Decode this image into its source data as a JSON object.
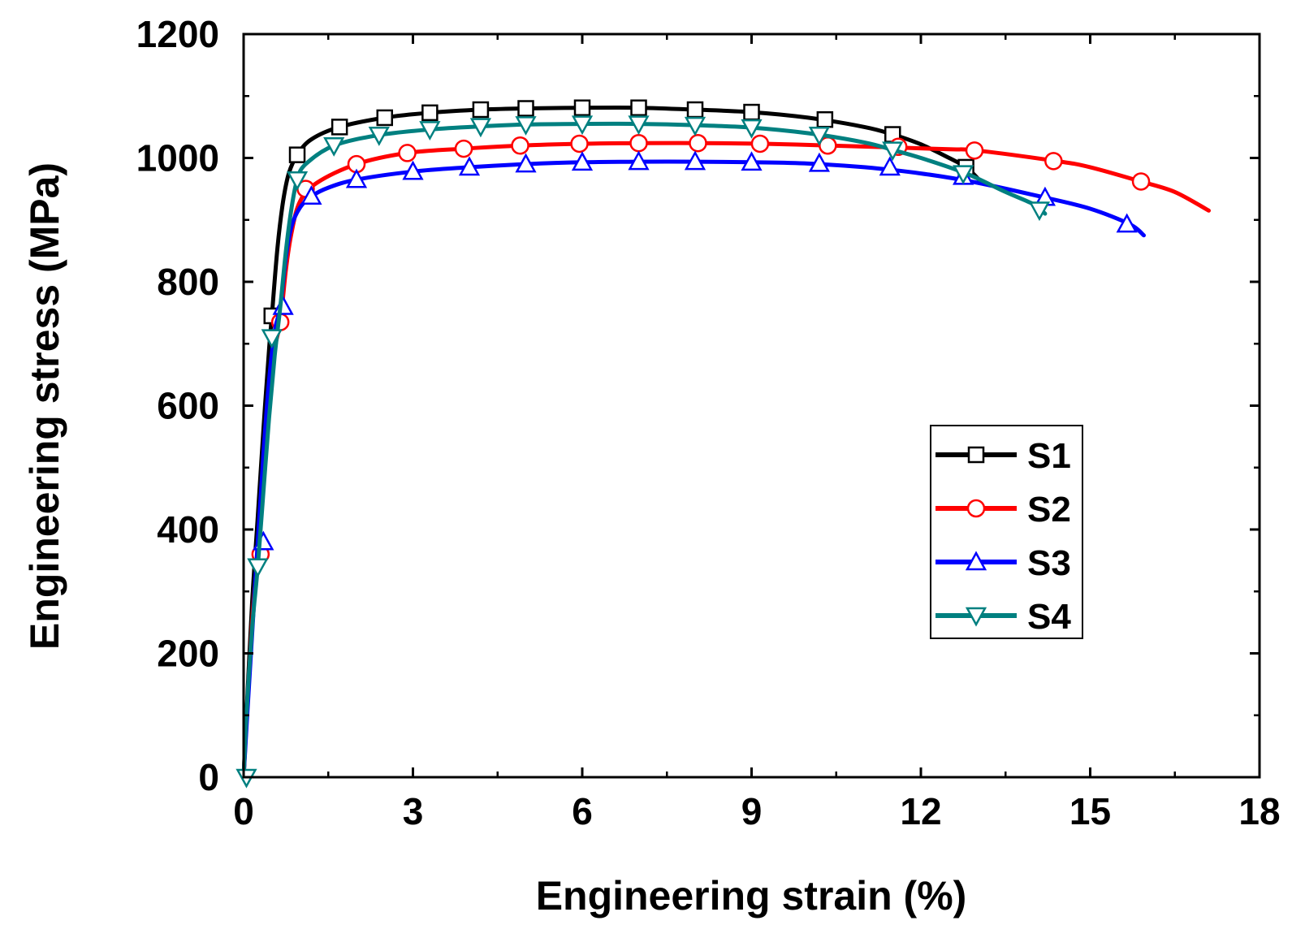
{
  "chart_data": {
    "type": "line",
    "xlabel": "Engineering strain (%)",
    "ylabel": "Engineering stress (MPa)",
    "xlim": [
      0,
      18
    ],
    "ylim": [
      0,
      1200
    ],
    "xticks": [
      0,
      3,
      6,
      9,
      12,
      15,
      18
    ],
    "xtick_labels": [
      "0",
      "3",
      "6",
      "9",
      "12",
      "15",
      "18"
    ],
    "yticks": [
      0,
      200,
      400,
      600,
      800,
      1000,
      1200
    ],
    "ytick_labels": [
      "0",
      "200",
      "400",
      "600",
      "800",
      "1000",
      "1200"
    ],
    "grid": false,
    "legend_position": "center-right",
    "series": [
      {
        "name": "S1",
        "color": "#000000",
        "marker": "square",
        "x": [
          0,
          0.05,
          0.15,
          0.25,
          0.35,
          0.45,
          0.5,
          0.6,
          0.7,
          0.8,
          0.95,
          1.2,
          1.7,
          2.5,
          3.3,
          4.2,
          5.0,
          6.0,
          7.0,
          8.0,
          9.0,
          10.0,
          11.0,
          11.5,
          12.0,
          12.5,
          12.8,
          13.05
        ],
        "y": [
          0,
          100,
          280,
          420,
          560,
          690,
          745,
          855,
          930,
          975,
          1005,
          1030,
          1050,
          1065,
          1073,
          1078,
          1080,
          1081,
          1081,
          1078,
          1074,
          1065,
          1050,
          1038,
          1022,
          1000,
          985,
          963
        ],
        "marker_x": [
          0.5,
          0.95,
          1.7,
          2.5,
          3.3,
          4.2,
          5.0,
          6.0,
          7.0,
          8.0,
          9.0,
          10.3,
          11.5,
          12.8
        ],
        "marker_y": [
          745,
          1005,
          1050,
          1065,
          1073,
          1078,
          1080,
          1081,
          1081,
          1078,
          1074,
          1062,
          1038,
          985
        ]
      },
      {
        "name": "S2",
        "color": "#ff0000",
        "marker": "circle",
        "x": [
          0,
          0.05,
          0.15,
          0.25,
          0.35,
          0.45,
          0.55,
          0.65,
          0.75,
          0.85,
          1.0,
          1.3,
          2.0,
          2.9,
          3.9,
          4.9,
          6.0,
          7.0,
          8.1,
          9.2,
          10.4,
          11.5,
          12.5,
          13.0,
          14.4,
          15.0,
          15.9,
          16.5,
          17.1
        ],
        "y": [
          0,
          90,
          250,
          360,
          470,
          590,
          690,
          735,
          820,
          880,
          930,
          960,
          990,
          1008,
          1015,
          1020,
          1023,
          1024,
          1024,
          1023,
          1020,
          1017,
          1014,
          1012,
          995,
          985,
          962,
          945,
          915
        ],
        "marker_x": [
          0.3,
          0.65,
          1.1,
          2.0,
          2.9,
          3.9,
          4.9,
          5.95,
          7.0,
          8.05,
          9.15,
          10.35,
          11.6,
          12.95,
          14.35,
          15.9
        ],
        "marker_y": [
          360,
          735,
          950,
          990,
          1008,
          1015,
          1020,
          1023,
          1024,
          1024,
          1023,
          1020,
          1018,
          1012,
          995,
          962
        ]
      },
      {
        "name": "S3",
        "color": "#0000ff",
        "marker": "triangle-up",
        "x": [
          0,
          0.05,
          0.15,
          0.25,
          0.35,
          0.45,
          0.55,
          0.65,
          0.75,
          0.85,
          1.0,
          1.2,
          1.5,
          2.0,
          3.0,
          4.0,
          5.0,
          6.0,
          7.0,
          8.0,
          9.0,
          10.0,
          11.0,
          12.0,
          13.0,
          14.2,
          15.0,
          15.7,
          15.95
        ],
        "y": [
          0,
          80,
          230,
          380,
          520,
          640,
          720,
          760,
          840,
          890,
          920,
          938,
          952,
          965,
          978,
          985,
          990,
          993,
          994,
          994,
          993,
          991,
          985,
          975,
          960,
          936,
          918,
          893,
          875
        ],
        "marker_x": [
          0.35,
          0.7,
          1.2,
          2.0,
          3.0,
          4.0,
          5.0,
          6.0,
          7.0,
          8.0,
          9.0,
          10.2,
          11.45,
          12.75,
          14.2,
          15.65
        ],
        "marker_y": [
          380,
          760,
          938,
          965,
          978,
          985,
          990,
          993,
          994,
          994,
          993,
          991,
          985,
          970,
          936,
          893
        ]
      },
      {
        "name": "S4",
        "color": "#008080",
        "marker": "triangle-down",
        "x": [
          0,
          0.05,
          0.15,
          0.25,
          0.35,
          0.45,
          0.55,
          0.65,
          0.75,
          0.85,
          0.95,
          1.1,
          1.6,
          2.4,
          3.3,
          4.2,
          5.0,
          6.0,
          7.0,
          8.0,
          9.0,
          10.0,
          11.0,
          11.5,
          12.0,
          12.8,
          13.5,
          14.0,
          14.2
        ],
        "y": [
          0,
          100,
          240,
          340,
          460,
          580,
          680,
          760,
          850,
          920,
          965,
          990,
          1020,
          1037,
          1046,
          1051,
          1054,
          1055,
          1055,
          1053,
          1049,
          1040,
          1025,
          1013,
          1000,
          975,
          945,
          925,
          910
        ],
        "marker_x": [
          0.05,
          0.25,
          0.5,
          0.95,
          1.6,
          2.4,
          3.3,
          4.2,
          5.0,
          6.0,
          7.0,
          8.0,
          9.0,
          10.2,
          11.5,
          12.75,
          14.1
        ],
        "marker_y": [
          0,
          340,
          710,
          965,
          1020,
          1037,
          1046,
          1051,
          1054,
          1055,
          1055,
          1053,
          1049,
          1037,
          1013,
          975,
          916
        ]
      }
    ]
  }
}
